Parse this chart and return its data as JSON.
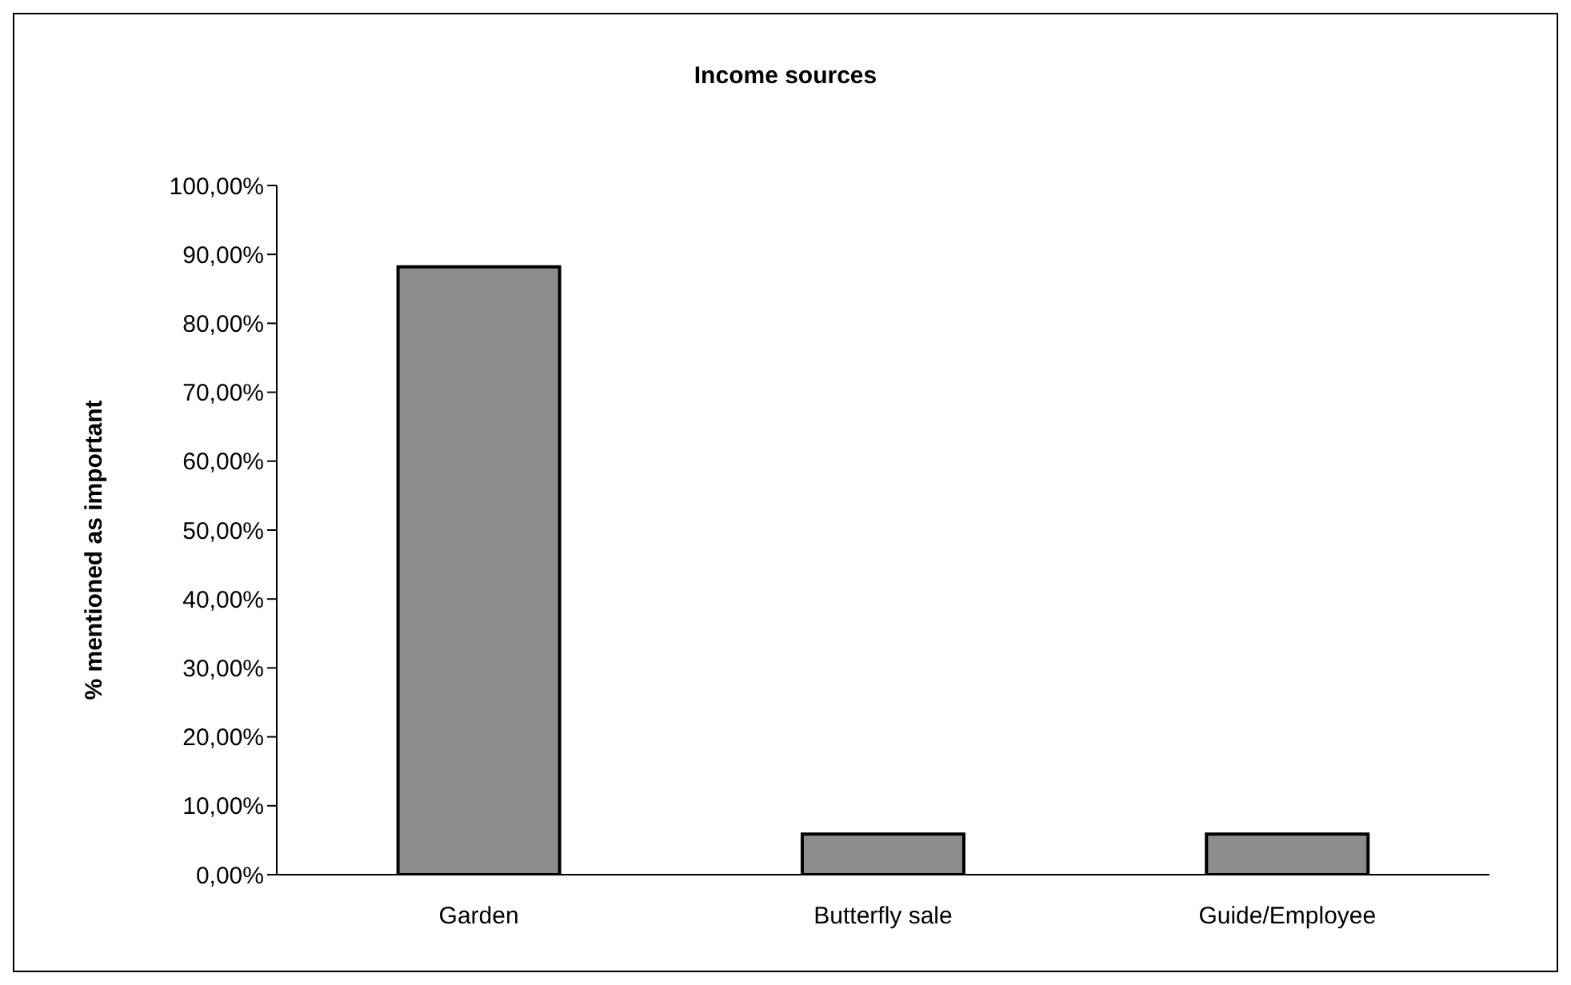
{
  "chart_data": {
    "type": "bar",
    "title": "Income sources",
    "ylabel": "% mentioned as important",
    "categories": [
      "Garden",
      "Butterfly sale",
      "Guide/Employee"
    ],
    "values": [
      88.2,
      5.9,
      5.9
    ],
    "color": "#8c8c8c",
    "ylim": [
      0,
      100
    ],
    "yticks": [
      {
        "value": 0,
        "label": "0,00%"
      },
      {
        "value": 10,
        "label": "10,00%"
      },
      {
        "value": 20,
        "label": "20,00%"
      },
      {
        "value": 30,
        "label": "30,00%"
      },
      {
        "value": 40,
        "label": "40,00%"
      },
      {
        "value": 50,
        "label": "50,00%"
      },
      {
        "value": 60,
        "label": "60,00%"
      },
      {
        "value": 70,
        "label": "70,00%"
      },
      {
        "value": 80,
        "label": "80,00%"
      },
      {
        "value": 90,
        "label": "90,00%"
      },
      {
        "value": 100,
        "label": "100,00%"
      }
    ],
    "grid": false,
    "legend": false
  }
}
